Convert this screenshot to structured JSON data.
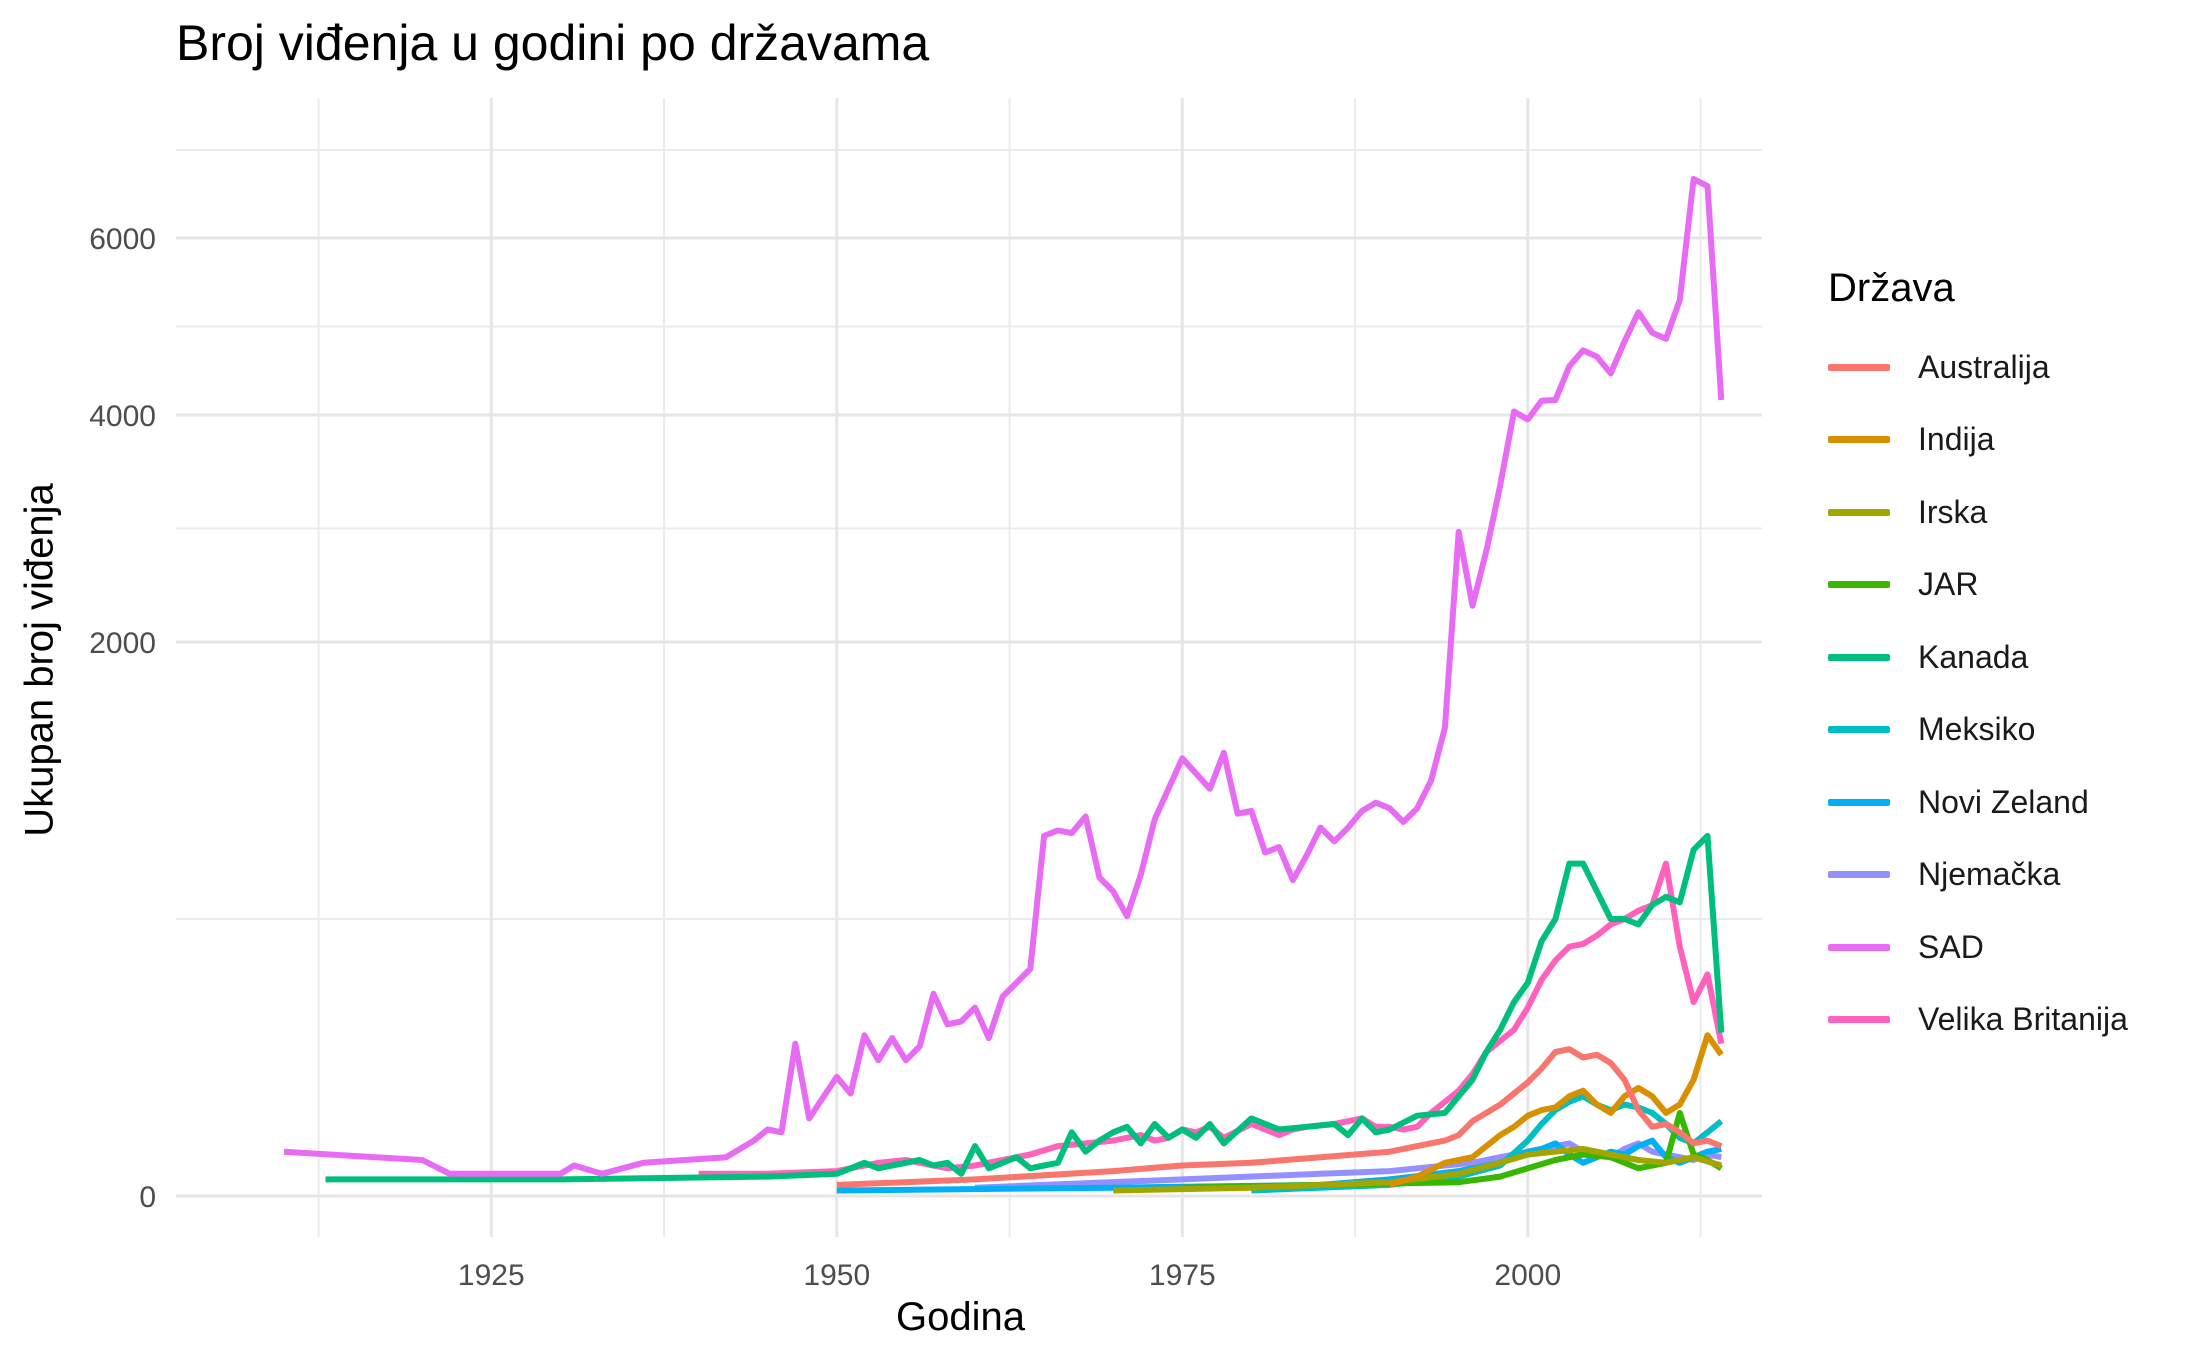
{
  "chart_data": {
    "type": "line",
    "title": "Broj viđenja u godini po državama",
    "xlabel": "Godina",
    "ylabel": "Ukupan broj viđenja",
    "x_ticks": [
      1925,
      1950,
      1975,
      2000
    ],
    "y_ticks": [
      0,
      2000,
      4000,
      6000
    ],
    "xlim": [
      1906,
      2020
    ],
    "grid": true,
    "legend": {
      "title": "Država",
      "placement": "right"
    },
    "series": [
      {
        "name": "SAD",
        "color": "#E76BF3",
        "x": [
          1910,
          1920,
          1922,
          1930,
          1931,
          1933,
          1936,
          1942,
          1944,
          1945,
          1946,
          1947,
          1948,
          1950,
          1951,
          1952,
          1953,
          1954,
          1955,
          1956,
          1957,
          1958,
          1959,
          1960,
          1961,
          1962,
          1964,
          1965,
          1966,
          1967,
          1968,
          1969,
          1970,
          1971,
          1972,
          1973,
          1975,
          1977,
          1978,
          1979,
          1980,
          1981,
          1982,
          1983,
          1984,
          1985,
          1986,
          1987,
          1988,
          1989,
          1990,
          1991,
          1992,
          1993,
          1994,
          1995,
          1996,
          1997,
          1998,
          1999,
          2000,
          2001,
          2002,
          2003,
          2004,
          2005,
          2006,
          2007,
          2008,
          2009,
          2010,
          2011,
          2012,
          2013,
          2014
        ],
        "values": [
          160,
          130,
          80,
          80,
          110,
          80,
          120,
          140,
          200,
          240,
          230,
          550,
          280,
          430,
          370,
          580,
          490,
          570,
          490,
          540,
          730,
          620,
          630,
          680,
          570,
          720,
          820,
          1300,
          1320,
          1310,
          1370,
          1150,
          1100,
          1010,
          1160,
          1360,
          1580,
          1470,
          1600,
          1380,
          1390,
          1240,
          1260,
          1140,
          1230,
          1330,
          1280,
          1330,
          1390,
          1420,
          1400,
          1350,
          1400,
          1500,
          1690,
          2970,
          2320,
          2800,
          3380,
          4040,
          3960,
          4160,
          4170,
          4550,
          4730,
          4660,
          4470,
          4830,
          5160,
          4930,
          4860,
          5300,
          6670,
          6590,
          4170
        ]
      },
      {
        "name": "Kanada",
        "color": "#00BF7D",
        "x": [
          1913,
          1930,
          1945,
          1950,
          1951,
          1952,
          1953,
          1954,
          1956,
          1957,
          1958,
          1959,
          1960,
          1961,
          1962,
          1963,
          1964,
          1965,
          1966,
          1967,
          1968,
          1969,
          1970,
          1971,
          1972,
          1973,
          1974,
          1975,
          1976,
          1977,
          1978,
          1980,
          1982,
          1984,
          1986,
          1987,
          1988,
          1989,
          1990,
          1992,
          1994,
          1995,
          1996,
          1997,
          1998,
          1999,
          2000,
          2001,
          2002,
          2003,
          2004,
          2005,
          2006,
          2007,
          2008,
          2009,
          2010,
          2011,
          2012,
          2013,
          2014
        ],
        "values": [
          60,
          60,
          70,
          80,
          100,
          120,
          100,
          110,
          130,
          110,
          120,
          80,
          180,
          100,
          120,
          140,
          100,
          110,
          120,
          230,
          160,
          200,
          230,
          250,
          190,
          260,
          210,
          240,
          210,
          260,
          190,
          280,
          240,
          250,
          260,
          220,
          280,
          230,
          240,
          290,
          300,
          360,
          420,
          520,
          600,
          700,
          770,
          920,
          1000,
          1200,
          1200,
          1100,
          1000,
          1000,
          980,
          1050,
          1080,
          1060,
          1250,
          1300,
          590
        ]
      },
      {
        "name": "Velika Britanija",
        "color": "#FF62BC",
        "x": [
          1940,
          1945,
          1950,
          1953,
          1955,
          1958,
          1960,
          1962,
          1964,
          1966,
          1968,
          1970,
          1972,
          1973,
          1974,
          1975,
          1976,
          1977,
          1978,
          1980,
          1981,
          1982,
          1983,
          1984,
          1986,
          1987,
          1988,
          1989,
          1990,
          1991,
          1992,
          1993,
          1994,
          1995,
          1996,
          1997,
          1998,
          1999,
          2000,
          2001,
          2002,
          2003,
          2004,
          2005,
          2006,
          2007,
          2008,
          2009,
          2010,
          2011,
          2012,
          2013,
          2014
        ],
        "values": [
          80,
          80,
          90,
          120,
          130,
          100,
          110,
          130,
          150,
          180,
          190,
          200,
          220,
          200,
          210,
          240,
          230,
          250,
          210,
          260,
          240,
          220,
          240,
          250,
          260,
          270,
          280,
          250,
          250,
          240,
          250,
          300,
          340,
          380,
          440,
          520,
          560,
          600,
          680,
          780,
          850,
          900,
          910,
          940,
          980,
          1000,
          1030,
          1050,
          1200,
          900,
          700,
          800,
          550
        ]
      },
      {
        "name": "Australija",
        "color": "#F8766D",
        "x": [
          1950,
          1960,
          1970,
          1975,
          1980,
          1985,
          1990,
          1992,
          1994,
          1995,
          1996,
          1997,
          1998,
          1999,
          2000,
          2001,
          2002,
          2003,
          2004,
          2005,
          2006,
          2007,
          2008,
          2009,
          2010,
          2011,
          2012,
          2013,
          2014
        ],
        "values": [
          40,
          60,
          90,
          110,
          120,
          140,
          160,
          180,
          200,
          220,
          270,
          300,
          330,
          370,
          410,
          460,
          520,
          530,
          500,
          510,
          480,
          420,
          310,
          250,
          260,
          230,
          190,
          200,
          180
        ]
      },
      {
        "name": "Indija",
        "color": "#D89000",
        "x": [
          1990,
          1992,
          1994,
          1996,
          1998,
          1999,
          2000,
          2001,
          2002,
          2003,
          2004,
          2005,
          2006,
          2007,
          2008,
          2009,
          2010,
          2011,
          2012,
          2013,
          2014
        ],
        "values": [
          40,
          70,
          120,
          140,
          220,
          250,
          290,
          310,
          320,
          360,
          380,
          330,
          300,
          360,
          390,
          360,
          300,
          330,
          420,
          580,
          510
        ]
      },
      {
        "name": "Irska",
        "color": "#A3A500",
        "x": [
          1970,
          1980,
          1990,
          1995,
          1998,
          2000,
          2002,
          2004,
          2006,
          2008,
          2010,
          2012,
          2014
        ],
        "values": [
          20,
          30,
          50,
          80,
          120,
          150,
          160,
          170,
          150,
          130,
          120,
          140,
          110
        ]
      },
      {
        "name": "JAR",
        "color": "#39B600",
        "x": [
          1975,
          1985,
          1995,
          1998,
          2000,
          2002,
          2004,
          2006,
          2008,
          2010,
          2011,
          2012,
          2013,
          2014
        ],
        "values": [
          30,
          40,
          50,
          70,
          100,
          130,
          150,
          140,
          100,
          120,
          300,
          150,
          130,
          100
        ]
      },
      {
        "name": "Meksiko",
        "color": "#00BFC4",
        "x": [
          1980,
          1990,
          1995,
          1998,
          2000,
          2001,
          2002,
          2003,
          2004,
          2005,
          2006,
          2007,
          2008,
          2009,
          2010,
          2011,
          2012,
          2013,
          2014
        ],
        "values": [
          20,
          40,
          70,
          110,
          200,
          260,
          310,
          340,
          360,
          330,
          310,
          330,
          320,
          300,
          260,
          210,
          190,
          230,
          270
        ]
      },
      {
        "name": "Novi Zeland",
        "color": "#00B0F6",
        "x": [
          1950,
          1970,
          1985,
          1990,
          1995,
          1998,
          2000,
          2001,
          2002,
          2003,
          2004,
          2005,
          2006,
          2007,
          2008,
          2009,
          2010,
          2011,
          2012,
          2013,
          2014
        ],
        "values": [
          20,
          30,
          40,
          60,
          90,
          120,
          160,
          170,
          190,
          150,
          120,
          140,
          160,
          150,
          180,
          200,
          140,
          120,
          140,
          160,
          170
        ]
      },
      {
        "name": "Njemačka",
        "color": "#9590FF",
        "x": [
          1960,
          1975,
          1985,
          1990,
          1992,
          1994,
          1996,
          1998,
          2000,
          2001,
          2002,
          2003,
          2004,
          2005,
          2006,
          2007,
          2008,
          2009,
          2010,
          2011,
          2012,
          2013,
          2014
        ],
        "values": [
          30,
          60,
          80,
          90,
          100,
          110,
          120,
          140,
          160,
          170,
          180,
          190,
          160,
          150,
          140,
          170,
          190,
          160,
          150,
          140,
          130,
          150,
          140
        ]
      }
    ]
  }
}
